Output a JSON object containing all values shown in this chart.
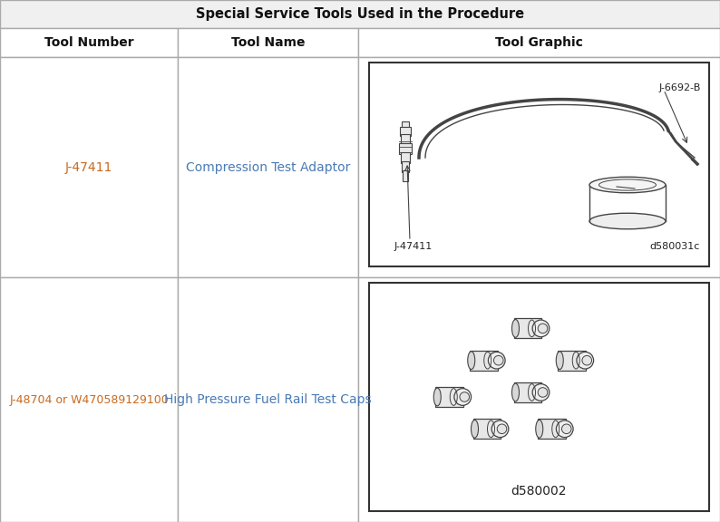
{
  "title": "Special Service Tools Used in the Procedure",
  "headers": [
    "Tool Number",
    "Tool Name",
    "Tool Graphic"
  ],
  "row1_tool_number": "J-47411",
  "row1_tool_name": "Compression Test Adaptor",
  "row1_label1": "J-6692-B",
  "row1_label2": "J-47411",
  "row1_label3": "d580031c",
  "row2_tool_number": "J-48704 or W470589129100",
  "row2_tool_name": "High Pressure Fuel Rail Test Caps",
  "row2_label": "d580002",
  "title_bg": "#f0f0f0",
  "border_color": "#aaaaaa",
  "title_color": "#111111",
  "header_color": "#111111",
  "tool_number_color1": "#c8691e",
  "tool_name_color": "#4a7ab5",
  "tool_number_color2": "#c8691e",
  "sketch_color": "#444444",
  "fig_width": 7.94,
  "fig_height": 5.76,
  "dpi": 100
}
